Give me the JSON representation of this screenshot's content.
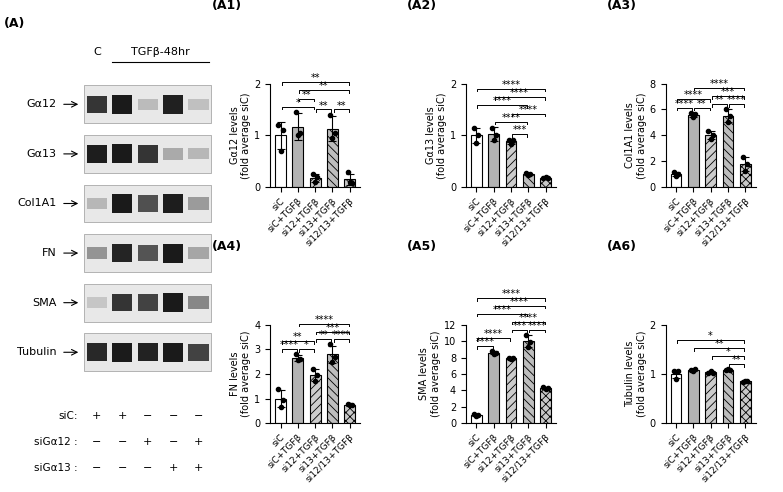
{
  "blot": {
    "panel": "(A)",
    "header_control": "C",
    "header_treatment": "TGFβ-48hr",
    "proteins": [
      "Gα12",
      "Gα13",
      "Col1A1",
      "FN",
      "SMA",
      "Tubulin"
    ],
    "conditions": [
      {
        "name": "siC:",
        "signs": [
          "+",
          "+",
          "−",
          "−",
          "−"
        ]
      },
      {
        "name": "siGα12 :",
        "signs": [
          "−",
          "−",
          "+",
          "−",
          "+"
        ]
      },
      {
        "name": "siGα13 :",
        "signs": [
          "−",
          "−",
          "−",
          "+",
          "+"
        ]
      }
    ]
  },
  "chart_data": [
    {
      "type": "bar",
      "title": "(A1)",
      "y_label": "Gα12 levels\n(fold average siC)",
      "categories": [
        "siC",
        "siC+TGFβ",
        "si12+TGFβ",
        "si13+TGFβ",
        "si12/13+TGFβ"
      ],
      "values": [
        1.0,
        1.17,
        0.18,
        1.13,
        0.15
      ],
      "errors": [
        0.26,
        0.27,
        0.08,
        0.25,
        0.11
      ],
      "points": [
        [
          1.2,
          0.7,
          1.1
        ],
        [
          1.45,
          1.0,
          1.05
        ],
        [
          0.25,
          0.1,
          0.2
        ],
        [
          1.4,
          0.95,
          1.05
        ],
        [
          0.28,
          0.1,
          0.08
        ]
      ],
      "colors": [
        "#ffffff",
        "#b3b3b3",
        "#cccccc",
        "#bdbdbd",
        "#c8c8c8"
      ],
      "ylim": [
        0,
        2
      ],
      "yticks": [
        0,
        1,
        2
      ],
      "annotations": [
        {
          "between": [
            "si12+TGFβ",
            "si13+TGFβ"
          ],
          "text": "**"
        },
        {
          "between": [
            "siC",
            "si12+TGFβ"
          ],
          "text": "*"
        },
        {
          "between": [
            "si13+TGFβ",
            "si12/13+TGFβ"
          ],
          "text": "**"
        },
        {
          "between": [
            "siC+TGFβ",
            "si12+TGFβ"
          ],
          "text": "**"
        },
        {
          "between": [
            "siC+TGFβ",
            "si12/13+TGFβ"
          ],
          "text": "**"
        },
        {
          "between": [
            "siC",
            "si12/13+TGFβ"
          ],
          "text": "**"
        }
      ]
    },
    {
      "type": "bar",
      "title": "(A2)",
      "y_label": "Gα13 levels\n(fold average siC)",
      "categories": [
        "siC",
        "siC+TGFβ",
        "si12+TGFβ",
        "si13+TGFβ",
        "si12/13+TGFβ"
      ],
      "values": [
        1.0,
        1.02,
        0.88,
        0.25,
        0.18
      ],
      "errors": [
        0.15,
        0.14,
        0.04,
        0.02,
        0.02
      ],
      "points": [
        [
          1.15,
          0.85,
          1.0
        ],
        [
          1.15,
          0.9,
          1.0
        ],
        [
          0.9,
          0.84,
          0.9
        ],
        [
          0.27,
          0.23,
          0.25
        ],
        [
          0.17,
          0.19,
          0.18
        ]
      ],
      "colors": [
        "#ffffff",
        "#b3b3b3",
        "#cccccc",
        "#bdbdbd",
        "#c8c8c8"
      ],
      "ylim": [
        0,
        2
      ],
      "yticks": [
        0,
        1,
        2
      ],
      "annotations": [
        {
          "between": [
            "si12+TGFβ",
            "si13+TGFβ"
          ],
          "text": "***"
        },
        {
          "between": [
            "siC+TGFβ",
            "si13+TGFβ"
          ],
          "text": "****"
        },
        {
          "between": [
            "si12+TGFβ",
            "si12/13+TGFβ"
          ],
          "text": "****"
        },
        {
          "between": [
            "siC",
            "si13+TGFβ"
          ],
          "text": "****"
        },
        {
          "between": [
            "siC+TGFβ",
            "si12/13+TGFβ"
          ],
          "text": "****"
        },
        {
          "between": [
            "siC",
            "si12/13+TGFβ"
          ],
          "text": "****"
        }
      ]
    },
    {
      "type": "bar",
      "title": "(A3)",
      "y_label": "Col1A1 levels\n(fold average siC)",
      "categories": [
        "siC",
        "siC+TGFβ",
        "si12+TGFβ",
        "si13+TGFβ",
        "si12/13+TGFβ"
      ],
      "values": [
        1.0,
        5.6,
        4.0,
        5.5,
        1.8
      ],
      "errors": [
        0.15,
        0.15,
        0.3,
        0.5,
        0.55
      ],
      "points": [
        [
          1.15,
          0.85,
          1.0
        ],
        [
          5.7,
          5.45,
          5.65
        ],
        [
          4.3,
          3.7,
          4.0
        ],
        [
          6.0,
          5.0,
          5.5
        ],
        [
          2.35,
          1.25,
          1.8
        ]
      ],
      "colors": [
        "#ffffff",
        "#b3b3b3",
        "#cccccc",
        "#bdbdbd",
        "#c8c8c8"
      ],
      "ylim": [
        0,
        8
      ],
      "yticks": [
        0,
        2,
        4,
        6,
        8
      ],
      "annotations": [
        {
          "between": [
            "siC",
            "siC+TGFβ"
          ],
          "text": "****"
        },
        {
          "between": [
            "siC+TGFβ",
            "si12+TGFβ"
          ],
          "text": "**"
        },
        {
          "between": [
            "si12+TGFβ",
            "si13+TGFβ"
          ],
          "text": "**"
        },
        {
          "between": [
            "siC",
            "si12+TGFβ"
          ],
          "text": "****"
        },
        {
          "between": [
            "si13+TGFβ",
            "si12/13+TGFβ"
          ],
          "text": "****"
        },
        {
          "between": [
            "si12+TGFβ",
            "si12/13+TGFβ"
          ],
          "text": "***"
        },
        {
          "between": [
            "siC+TGFβ",
            "si12/13+TGFβ"
          ],
          "text": "****"
        }
      ]
    },
    {
      "type": "bar",
      "title": "(A4)",
      "y_label": "FN levels\n(fold average siC)",
      "categories": [
        "siC",
        "siC+TGFβ",
        "si12+TGFβ",
        "si13+TGFβ",
        "si12/13+TGFβ"
      ],
      "values": [
        1.0,
        2.65,
        1.95,
        2.8,
        0.75
      ],
      "errors": [
        0.36,
        0.13,
        0.25,
        0.35,
        0.04
      ],
      "points": [
        [
          1.4,
          0.65,
          0.95
        ],
        [
          2.8,
          2.55,
          2.6
        ],
        [
          2.2,
          1.7,
          1.95
        ],
        [
          3.2,
          2.5,
          2.7
        ],
        [
          0.78,
          0.72,
          0.75
        ]
      ],
      "colors": [
        "#ffffff",
        "#b3b3b3",
        "#cccccc",
        "#bdbdbd",
        "#c8c8c8"
      ],
      "ylim": [
        0,
        4
      ],
      "yticks": [
        0,
        1,
        2,
        3,
        4
      ],
      "annotations": [
        {
          "between": [
            "siC",
            "siC+TGFβ"
          ],
          "text": "****"
        },
        {
          "between": [
            "siC+TGFβ",
            "si12+TGFβ"
          ],
          "text": "*"
        },
        {
          "between": [
            "si12+TGFβ",
            "si13+TGFβ"
          ],
          "text": "**"
        },
        {
          "between": [
            "si13+TGFβ",
            "si12/13+TGFβ"
          ],
          "text": "****"
        },
        {
          "between": [
            "siC",
            "si12+TGFβ"
          ],
          "text": "**"
        },
        {
          "between": [
            "si12+TGFβ",
            "si12/13+TGFβ"
          ],
          "text": "***"
        },
        {
          "between": [
            "siC+TGFβ",
            "si12/13+TGFβ"
          ],
          "text": "****"
        }
      ]
    },
    {
      "type": "bar",
      "title": "(A5)",
      "y_label": "SMA levels\n(fold average siC)",
      "categories": [
        "siC",
        "siC+TGFβ",
        "si12+TGFβ",
        "si13+TGFβ",
        "si12/13+TGFβ"
      ],
      "values": [
        1.0,
        8.6,
        7.9,
        10.0,
        4.3
      ],
      "errors": [
        0.12,
        0.17,
        0.12,
        0.75,
        0.1
      ],
      "points": [
        [
          1.1,
          0.88,
          1.02
        ],
        [
          8.8,
          8.45,
          8.55
        ],
        [
          8.0,
          7.8,
          7.9
        ],
        [
          10.8,
          9.3,
          9.9
        ],
        [
          4.4,
          4.2,
          4.3
        ]
      ],
      "colors": [
        "#ffffff",
        "#b3b3b3",
        "#cccccc",
        "#bdbdbd",
        "#c8c8c8"
      ],
      "ylim": [
        0,
        12
      ],
      "yticks": [
        0,
        2,
        4,
        6,
        8,
        10,
        12
      ],
      "annotations": [
        {
          "between": [
            "siC",
            "siC+TGFβ"
          ],
          "text": "****"
        },
        {
          "between": [
            "si12+TGFβ",
            "si13+TGFβ"
          ],
          "text": "***"
        },
        {
          "between": [
            "si13+TGFβ",
            "si12/13+TGFβ"
          ],
          "text": "****"
        },
        {
          "between": [
            "siC",
            "si12+TGFβ"
          ],
          "text": "****"
        },
        {
          "between": [
            "si12+TGFβ",
            "si12/13+TGFβ"
          ],
          "text": "****"
        },
        {
          "between": [
            "siC",
            "si13+TGFβ"
          ],
          "text": "****"
        },
        {
          "between": [
            "siC+TGFβ",
            "si12/13+TGFβ"
          ],
          "text": "****"
        },
        {
          "between": [
            "siC",
            "si12/13+TGFβ"
          ],
          "text": "****"
        }
      ]
    },
    {
      "type": "bar",
      "title": "(A6)",
      "y_label": "Tubulin levels\n(fold average siC)",
      "categories": [
        "siC",
        "siC+TGFβ",
        "si12+TGFβ",
        "si13+TGFβ",
        "si12/13+TGFβ"
      ],
      "values": [
        1.0,
        1.07,
        1.03,
        1.08,
        0.85
      ],
      "errors": [
        0.08,
        0.02,
        0.02,
        0.02,
        0.01
      ],
      "points": [
        [
          1.05,
          0.9,
          1.05
        ],
        [
          1.07,
          1.05,
          1.09
        ],
        [
          1.02,
          1.05,
          1.02
        ],
        [
          1.07,
          1.1,
          1.07
        ],
        [
          0.84,
          0.86,
          0.85
        ]
      ],
      "colors": [
        "#ffffff",
        "#b3b3b3",
        "#cccccc",
        "#bdbdbd",
        "#c8c8c8"
      ],
      "ylim": [
        0,
        2
      ],
      "yticks": [
        0,
        1,
        2
      ],
      "annotations": [
        {
          "between": [
            "si13+TGFβ",
            "si12/13+TGFβ"
          ],
          "text": "**"
        },
        {
          "between": [
            "si12+TGFβ",
            "si12/13+TGFβ"
          ],
          "text": "*"
        },
        {
          "between": [
            "siC+TGFβ",
            "si12/13+TGFβ"
          ],
          "text": "**"
        },
        {
          "between": [
            "siC",
            "si12/13+TGFβ"
          ],
          "text": "*"
        }
      ]
    }
  ]
}
